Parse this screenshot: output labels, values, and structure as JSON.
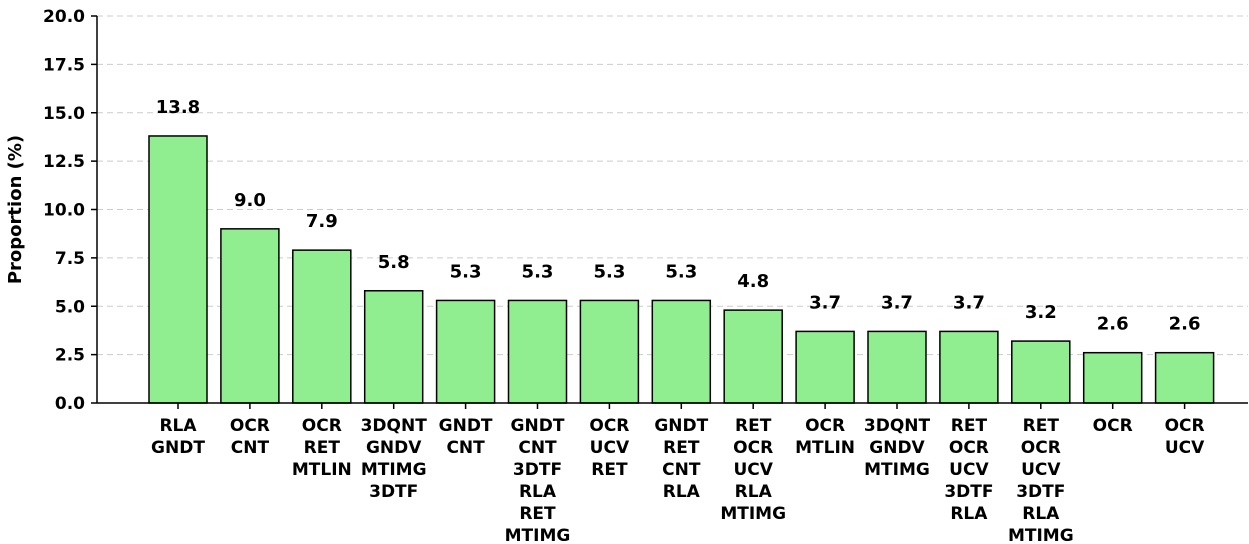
{
  "chart_data": {
    "type": "bar",
    "ylabel": "Proportion (%)",
    "xlabel": "",
    "ylim": [
      0,
      20
    ],
    "yticks": [
      "0.0",
      "2.5",
      "5.0",
      "7.5",
      "10.0",
      "12.5",
      "15.0",
      "17.5",
      "20.0"
    ],
    "grid": "y-dashed",
    "bar_color": "#90EE90",
    "categories": [
      [
        "RLA",
        "GNDT"
      ],
      [
        "OCR",
        "CNT"
      ],
      [
        "OCR",
        "RET",
        "MTLIN"
      ],
      [
        "3DQNT",
        "GNDV",
        "MTIMG",
        "3DTF"
      ],
      [
        "GNDT",
        "CNT"
      ],
      [
        "GNDT",
        "CNT",
        "3DTF",
        "RLA",
        "RET",
        "MTIMG"
      ],
      [
        "OCR",
        "UCV",
        "RET"
      ],
      [
        "GNDT",
        "RET",
        "CNT",
        "RLA"
      ],
      [
        "RET",
        "OCR",
        "UCV",
        "RLA",
        "MTIMG"
      ],
      [
        "OCR",
        "MTLIN"
      ],
      [
        "3DQNT",
        "GNDV",
        "MTIMG"
      ],
      [
        "RET",
        "OCR",
        "UCV",
        "3DTF",
        "RLA"
      ],
      [
        "RET",
        "OCR",
        "UCV",
        "3DTF",
        "RLA",
        "MTIMG"
      ],
      [
        "OCR"
      ],
      [
        "OCR",
        "UCV"
      ]
    ],
    "values": [
      13.8,
      9.0,
      7.9,
      5.8,
      5.3,
      5.3,
      5.3,
      5.3,
      4.8,
      3.7,
      3.7,
      3.7,
      3.2,
      2.6,
      2.6
    ],
    "value_labels": [
      "13.8",
      "9.0",
      "7.9",
      "5.8",
      "5.3",
      "5.3",
      "5.3",
      "5.3",
      "4.8",
      "3.7",
      "3.7",
      "3.7",
      "3.2",
      "2.6",
      "2.6"
    ]
  }
}
